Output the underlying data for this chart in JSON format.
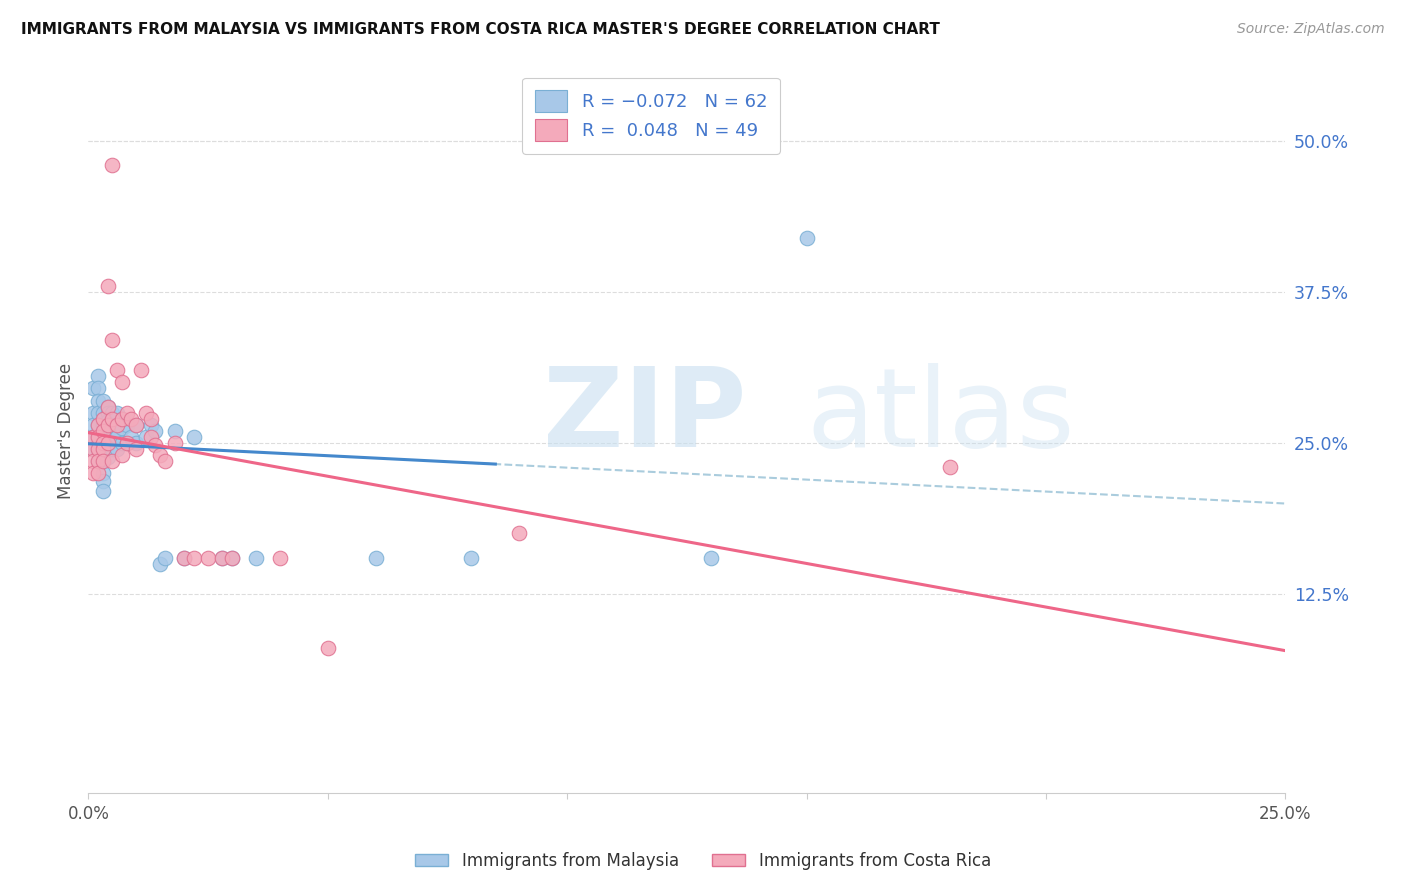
{
  "title": "IMMIGRANTS FROM MALAYSIA VS IMMIGRANTS FROM COSTA RICA MASTER'S DEGREE CORRELATION CHART",
  "source": "Source: ZipAtlas.com",
  "ylabel": "Master's Degree",
  "ytick_labels": [
    "50.0%",
    "37.5%",
    "25.0%",
    "12.5%"
  ],
  "ytick_values": [
    0.5,
    0.375,
    0.25,
    0.125
  ],
  "xtick_values": [
    0.0,
    0.05,
    0.1,
    0.15,
    0.2,
    0.25
  ],
  "xtick_labels": [
    "0.0%",
    "",
    "",
    "",
    "",
    "25.0%"
  ],
  "xlim": [
    0.0,
    0.25
  ],
  "ylim": [
    -0.04,
    0.56
  ],
  "color_malaysia": "#a8c8e8",
  "color_malaysia_edge": "#7aafd4",
  "color_costarica": "#f4aabb",
  "color_costarica_edge": "#e07090",
  "color_blue_text": "#4477cc",
  "color_trend_malaysia": "#4488cc",
  "color_trend_costarica": "#ee6688",
  "color_dashed": "#aaccdd",
  "malaysia_x": [
    0.001,
    0.001,
    0.001,
    0.001,
    0.001,
    0.002,
    0.002,
    0.002,
    0.002,
    0.002,
    0.002,
    0.002,
    0.002,
    0.003,
    0.003,
    0.003,
    0.003,
    0.003,
    0.003,
    0.003,
    0.003,
    0.003,
    0.003,
    0.003,
    0.004,
    0.004,
    0.004,
    0.004,
    0.004,
    0.004,
    0.004,
    0.005,
    0.005,
    0.005,
    0.005,
    0.006,
    0.006,
    0.006,
    0.006,
    0.007,
    0.007,
    0.007,
    0.008,
    0.008,
    0.009,
    0.01,
    0.01,
    0.012,
    0.013,
    0.014,
    0.015,
    0.016,
    0.018,
    0.02,
    0.022,
    0.028,
    0.03,
    0.035,
    0.06,
    0.08,
    0.13,
    0.15
  ],
  "malaysia_y": [
    0.295,
    0.275,
    0.265,
    0.255,
    0.245,
    0.305,
    0.295,
    0.285,
    0.275,
    0.265,
    0.255,
    0.245,
    0.235,
    0.285,
    0.275,
    0.265,
    0.26,
    0.255,
    0.248,
    0.24,
    0.235,
    0.225,
    0.218,
    0.21,
    0.28,
    0.275,
    0.268,
    0.26,
    0.255,
    0.248,
    0.238,
    0.275,
    0.265,
    0.255,
    0.245,
    0.275,
    0.265,
    0.255,
    0.245,
    0.27,
    0.262,
    0.25,
    0.265,
    0.25,
    0.255,
    0.265,
    0.25,
    0.255,
    0.265,
    0.26,
    0.15,
    0.155,
    0.26,
    0.155,
    0.255,
    0.155,
    0.155,
    0.155,
    0.155,
    0.155,
    0.155,
    0.42
  ],
  "costarica_x": [
    0.001,
    0.001,
    0.001,
    0.001,
    0.002,
    0.002,
    0.002,
    0.002,
    0.002,
    0.003,
    0.003,
    0.003,
    0.003,
    0.003,
    0.004,
    0.004,
    0.004,
    0.004,
    0.005,
    0.005,
    0.005,
    0.005,
    0.006,
    0.006,
    0.007,
    0.007,
    0.007,
    0.008,
    0.008,
    0.009,
    0.01,
    0.01,
    0.011,
    0.012,
    0.013,
    0.013,
    0.014,
    0.015,
    0.016,
    0.018,
    0.02,
    0.022,
    0.025,
    0.028,
    0.03,
    0.04,
    0.05,
    0.09,
    0.18
  ],
  "costarica_y": [
    0.255,
    0.245,
    0.235,
    0.225,
    0.265,
    0.255,
    0.245,
    0.235,
    0.225,
    0.27,
    0.26,
    0.25,
    0.245,
    0.235,
    0.38,
    0.28,
    0.265,
    0.25,
    0.48,
    0.335,
    0.27,
    0.235,
    0.31,
    0.265,
    0.3,
    0.27,
    0.24,
    0.275,
    0.25,
    0.27,
    0.265,
    0.245,
    0.31,
    0.275,
    0.27,
    0.255,
    0.248,
    0.24,
    0.235,
    0.25,
    0.155,
    0.155,
    0.155,
    0.155,
    0.155,
    0.155,
    0.08,
    0.175,
    0.23
  ],
  "legend_line1": "R = -0.072   N = 62",
  "legend_line2": "R =  0.048   N = 49"
}
